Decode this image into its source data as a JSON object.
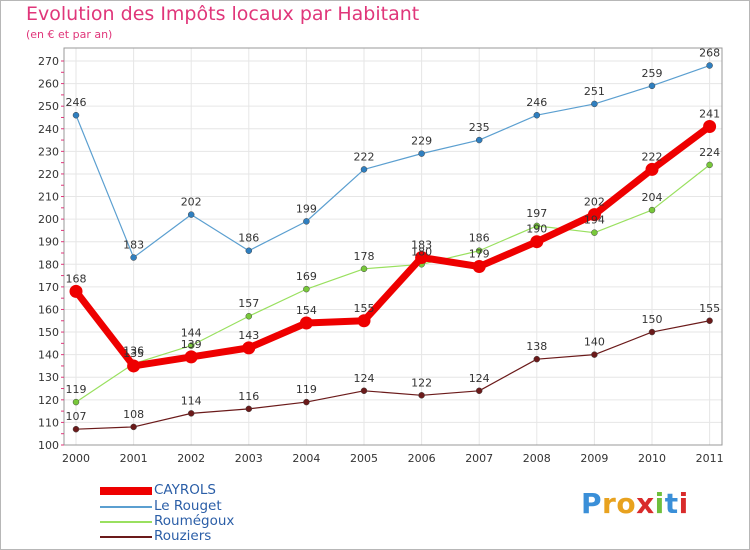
{
  "colors": {
    "title": "#e0367a",
    "axis_text": "#333333",
    "grid": "#e6e6e6",
    "axis_ticks": "#e0367a",
    "legend_text": "#2b5ea7"
  },
  "chart_data": {
    "type": "line",
    "title": "Evolution des Impôts locaux par Habitant",
    "subtitle": "(en € et par an)",
    "xlabel": "",
    "ylabel": "",
    "ylim": [
      100,
      270
    ],
    "yticks": [
      100,
      110,
      120,
      130,
      140,
      150,
      160,
      170,
      180,
      190,
      200,
      210,
      220,
      230,
      240,
      250,
      260,
      270
    ],
    "categories": [
      "2000",
      "2001",
      "2002",
      "2003",
      "2004",
      "2005",
      "2006",
      "2007",
      "2008",
      "2009",
      "2010",
      "2011"
    ],
    "grid": true,
    "legend_position": "bottom-left",
    "series": [
      {
        "name": "Rouziers",
        "color": "#6b1a1a",
        "marker": "#6b1a1a",
        "weight": 1,
        "values": [
          107,
          108,
          114,
          116,
          119,
          124,
          122,
          124,
          138,
          140,
          150,
          155
        ]
      },
      {
        "name": "Roumégoux",
        "color": "#99e05f",
        "marker": "#78c83a",
        "weight": 1,
        "values": [
          119,
          136,
          144,
          157,
          169,
          178,
          180,
          186,
          197,
          194,
          204,
          224
        ]
      },
      {
        "name": "Le Rouget",
        "color": "#5b9fd0",
        "marker": "#2f7fc0",
        "weight": 1,
        "values": [
          246,
          183,
          202,
          186,
          199,
          222,
          229,
          235,
          246,
          251,
          259,
          268
        ]
      },
      {
        "name": "CAYROLS",
        "color": "#ee0000",
        "marker": "#ee0000",
        "weight": 6,
        "values": [
          168,
          135,
          139,
          143,
          154,
          155,
          183,
          179,
          190,
          202,
          222,
          241
        ]
      }
    ]
  },
  "legend": {
    "items": [
      {
        "name": "CAYROLS",
        "color": "#ee0000",
        "thickness": 8
      },
      {
        "name": "Le Rouget",
        "color": "#5b9fd0",
        "thickness": 2
      },
      {
        "name": "Roumégoux",
        "color": "#99e05f",
        "thickness": 2
      },
      {
        "name": "Rouziers",
        "color": "#6b1a1a",
        "thickness": 2
      }
    ]
  },
  "logo": {
    "letters": [
      {
        "ch": "P",
        "color": "#3a8fd8"
      },
      {
        "ch": "r",
        "color": "#e8a21f"
      },
      {
        "ch": "o",
        "color": "#e8a21f"
      },
      {
        "ch": "x",
        "color": "#d92b2b"
      },
      {
        "ch": "i",
        "color": "#6fbf3c"
      },
      {
        "ch": "t",
        "color": "#3a8fd8"
      },
      {
        "ch": "i",
        "color": "#d92b2b"
      }
    ]
  }
}
